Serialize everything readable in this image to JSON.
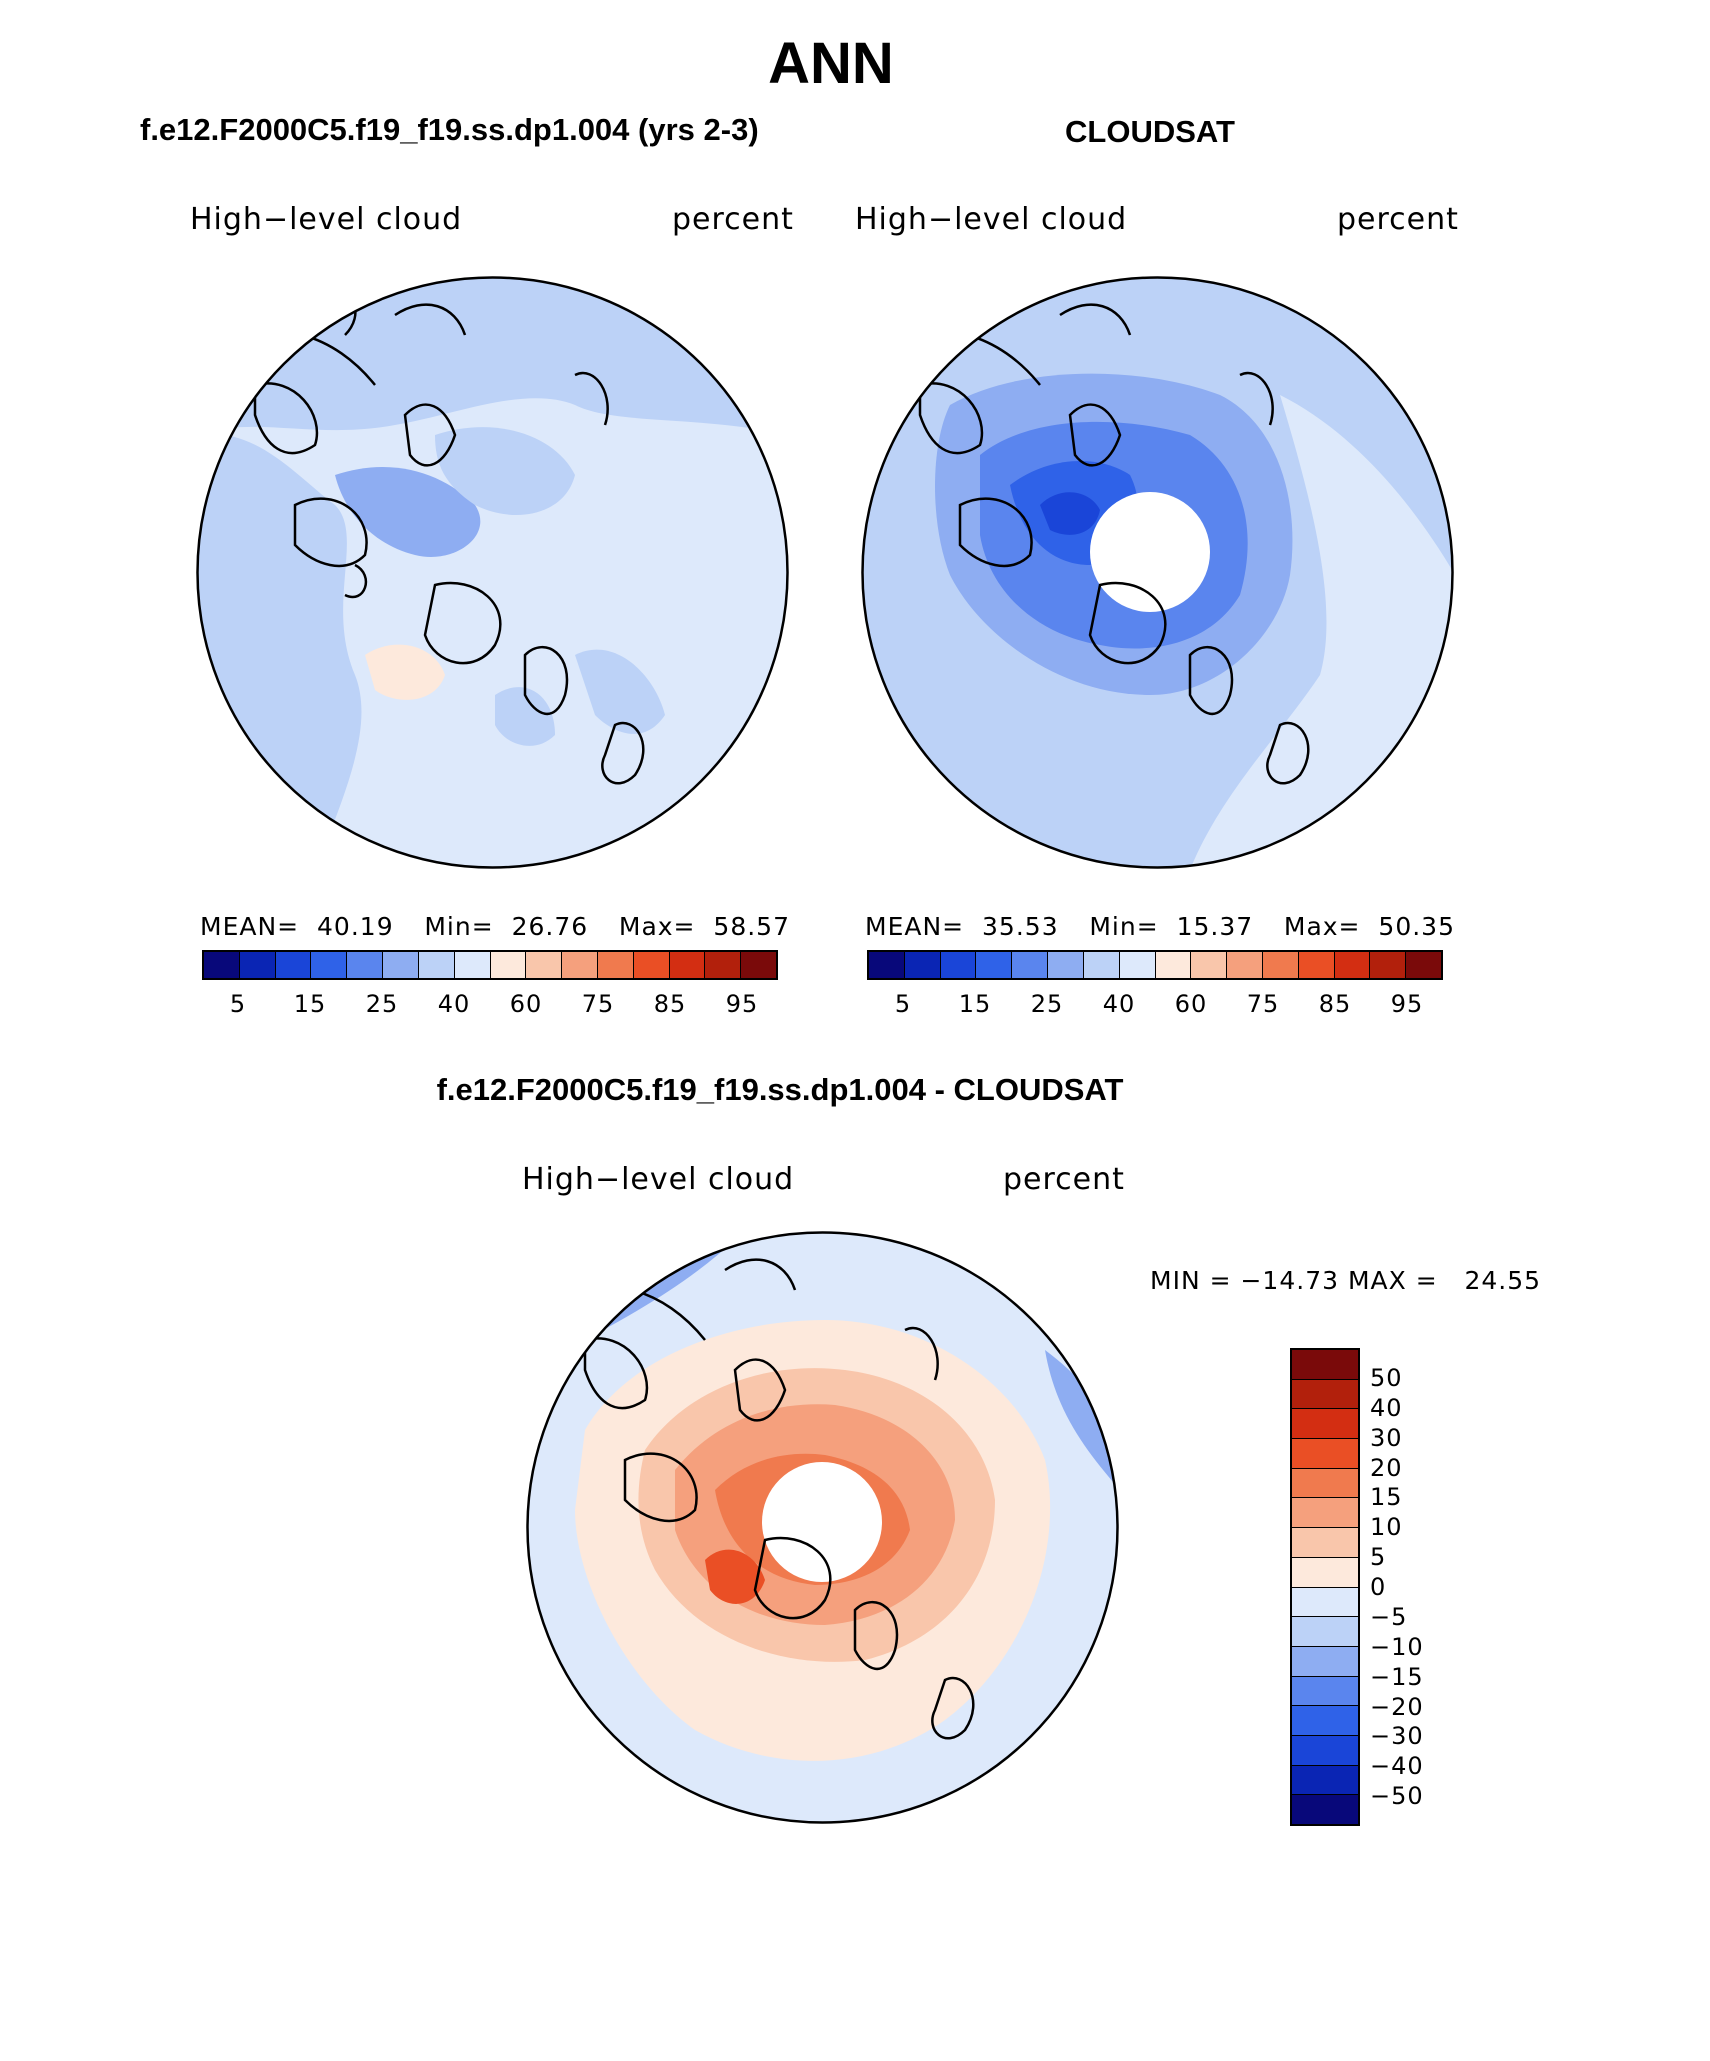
{
  "main_title": "ANN",
  "panels": [
    {
      "title": "f.e12.F2000C5.f19_f19.ss.dp1.004 (yrs 2-3)",
      "left_label": "High−level cloud",
      "right_label": "percent",
      "stats": {
        "mean_label": "MEAN=",
        "mean": "40.19",
        "min_label": "Min=",
        "min": "26.76",
        "max_label": "Max=",
        "max": "58.57"
      }
    },
    {
      "title": "CLOUDSAT",
      "left_label": "High−level cloud",
      "right_label": "percent",
      "stats": {
        "mean_label": "MEAN=",
        "mean": "35.53",
        "min_label": "Min=",
        "min": "15.37",
        "max_label": "Max=",
        "max": "50.35"
      }
    }
  ],
  "diff_panel": {
    "title": "f.e12.F2000C5.f19_f19.ss.dp1.004 - CLOUDSAT",
    "left_label": "High−level cloud",
    "right_label": "percent",
    "minmax": "MIN = −14.73 MAX =   24.55"
  },
  "colorbar_abs": {
    "ticks": [
      "5",
      "15",
      "25",
      "40",
      "60",
      "75",
      "85",
      "95"
    ],
    "colors": [
      "#08087a",
      "#0a25b4",
      "#1a45d8",
      "#2f62e8",
      "#5a85ee",
      "#8eadf2",
      "#bcd2f7",
      "#dde9fb",
      "#fde9dc",
      "#f9c6ab",
      "#f5a07d",
      "#f07a4e",
      "#ea4f25",
      "#d32e12",
      "#b2200c",
      "#7a0a0a"
    ]
  },
  "colorbar_diff": {
    "ticks": [
      "50",
      "40",
      "30",
      "20",
      "15",
      "10",
      "5",
      "0",
      "−5",
      "−10",
      "−15",
      "−20",
      "−30",
      "−40",
      "−50"
    ],
    "colors": [
      "#7a0a0a",
      "#b2200c",
      "#d32e12",
      "#ea4f25",
      "#f07a4e",
      "#f5a07d",
      "#f9c6ab",
      "#fde9dc",
      "#dde9fb",
      "#bcd2f7",
      "#8eadf2",
      "#5a85ee",
      "#2f62e8",
      "#1a45d8",
      "#0a25b4",
      "#08087a"
    ]
  }
}
